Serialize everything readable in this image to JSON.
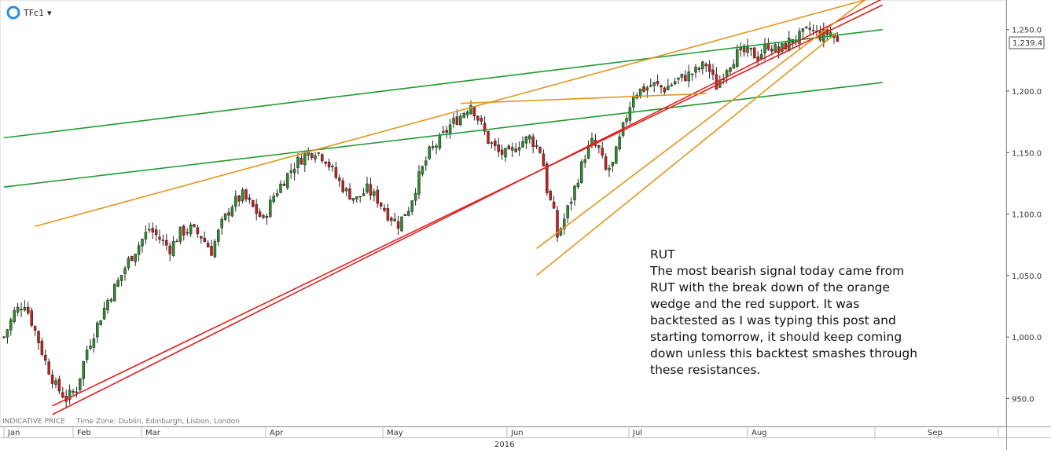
{
  "header": {
    "symbol": "TFc1",
    "dropdown_glyph": "▾",
    "logo_icon": "chart-logo-icon"
  },
  "footer": {
    "indicative": "INDICATIVE PRICE",
    "timezone": "Time Zone: Dublin, Edinburgh, Lisbon, London",
    "year": "2016"
  },
  "note": {
    "title": "RUT",
    "lines": [
      "The most bearish signal today came from",
      "RUT with the break down of the orange",
      "wedge and the red support. It was",
      "backtested as I was typing this post and",
      "starting tomorrow, it should keep coming",
      "down unless this backtest smashes through",
      "these resistances."
    ]
  },
  "chart_data": {
    "type": "candlestick",
    "instrument": "TFc1",
    "y_axis": {
      "ticks": [
        950,
        1000,
        1050,
        1100,
        1150,
        1200,
        1250
      ],
      "tick_labels": [
        "950.0",
        "1,000.0",
        "1,050.0",
        "1,100.0",
        "1,150.0",
        "1,200.0",
        "1,250.0"
      ],
      "range": [
        934,
        1276
      ],
      "side": "right"
    },
    "x_axis": {
      "months": [
        "Jan",
        "Feb",
        "Mar",
        "Apr",
        "May",
        "Jun",
        "Jul",
        "Aug",
        "Sep"
      ],
      "year": "2016",
      "range_days": [
        0,
        254
      ]
    },
    "last_price": "1,239.4",
    "colors": {
      "up": "#2e8b2e",
      "down": "#c81e1e",
      "wick": "#222222",
      "green_line": "#1e9a30",
      "red_line": "#e02020",
      "orange_line": "#e0961e"
    },
    "close_path": [
      [
        0,
        1000
      ],
      [
        3,
        1020
      ],
      [
        6,
        1028
      ],
      [
        9,
        1005
      ],
      [
        12,
        980
      ],
      [
        15,
        960
      ],
      [
        18,
        950
      ],
      [
        21,
        958
      ],
      [
        24,
        990
      ],
      [
        27,
        1010
      ],
      [
        30,
        1030
      ],
      [
        33,
        1045
      ],
      [
        36,
        1062
      ],
      [
        39,
        1075
      ],
      [
        42,
        1088
      ],
      [
        45,
        1080
      ],
      [
        48,
        1072
      ],
      [
        51,
        1085
      ],
      [
        54,
        1088
      ],
      [
        57,
        1082
      ],
      [
        60,
        1070
      ],
      [
        63,
        1092
      ],
      [
        66,
        1108
      ],
      [
        69,
        1115
      ],
      [
        72,
        1105
      ],
      [
        75,
        1095
      ],
      [
        78,
        1115
      ],
      [
        81,
        1128
      ],
      [
        84,
        1140
      ],
      [
        87,
        1148
      ],
      [
        90,
        1152
      ],
      [
        93,
        1145
      ],
      [
        96,
        1130
      ],
      [
        99,
        1118
      ],
      [
        102,
        1112
      ],
      [
        105,
        1120
      ],
      [
        108,
        1112
      ],
      [
        111,
        1100
      ],
      [
        114,
        1092
      ],
      [
        117,
        1105
      ],
      [
        120,
        1130
      ],
      [
        123,
        1150
      ],
      [
        126,
        1160
      ],
      [
        129,
        1172
      ],
      [
        132,
        1180
      ],
      [
        135,
        1190
      ],
      [
        137,
        1178
      ],
      [
        140,
        1160
      ],
      [
        143,
        1150
      ],
      [
        146,
        1148
      ],
      [
        149,
        1158
      ],
      [
        152,
        1162
      ],
      [
        155,
        1152
      ],
      [
        156,
        1140
      ],
      [
        157,
        1120
      ],
      [
        159,
        1100
      ],
      [
        160,
        1082
      ],
      [
        162,
        1096
      ],
      [
        164,
        1112
      ],
      [
        166,
        1130
      ],
      [
        168,
        1148
      ],
      [
        170,
        1158
      ],
      [
        172,
        1152
      ],
      [
        174,
        1135
      ],
      [
        176,
        1140
      ],
      [
        178,
        1160
      ],
      [
        180,
        1180
      ],
      [
        182,
        1198
      ],
      [
        185,
        1202
      ],
      [
        188,
        1205
      ],
      [
        191,
        1202
      ],
      [
        194,
        1208
      ],
      [
        197,
        1212
      ],
      [
        200,
        1216
      ],
      [
        203,
        1222
      ],
      [
        206,
        1204
      ],
      [
        209,
        1220
      ],
      [
        212,
        1230
      ],
      [
        215,
        1232
      ],
      [
        218,
        1228
      ],
      [
        221,
        1238
      ],
      [
        224,
        1232
      ],
      [
        227,
        1240
      ],
      [
        230,
        1244
      ],
      [
        233,
        1250
      ],
      [
        236,
        1245
      ],
      [
        239,
        1248
      ],
      [
        241,
        1239.4
      ]
    ],
    "trendlines": [
      {
        "color": "green",
        "from": [
          0,
          1162
        ],
        "to": [
          254,
          1250
        ]
      },
      {
        "color": "green",
        "from": [
          0,
          1122
        ],
        "to": [
          254,
          1207
        ]
      },
      {
        "color": "red",
        "from": [
          14,
          944
        ],
        "to": [
          254,
          1270
        ]
      },
      {
        "color": "red",
        "from": [
          14,
          937
        ],
        "to": [
          254,
          1275
        ]
      },
      {
        "color": "orange",
        "from": [
          9,
          1090
        ],
        "to": [
          254,
          1278
        ]
      },
      {
        "color": "orange",
        "from": [
          132,
          1190
        ],
        "to": [
          203,
          1198
        ]
      },
      {
        "color": "orange",
        "from": [
          154,
          1072
        ],
        "to": [
          254,
          1285
        ]
      },
      {
        "color": "orange",
        "from": [
          154,
          1050
        ],
        "to": [
          241,
          1248
        ]
      }
    ]
  }
}
